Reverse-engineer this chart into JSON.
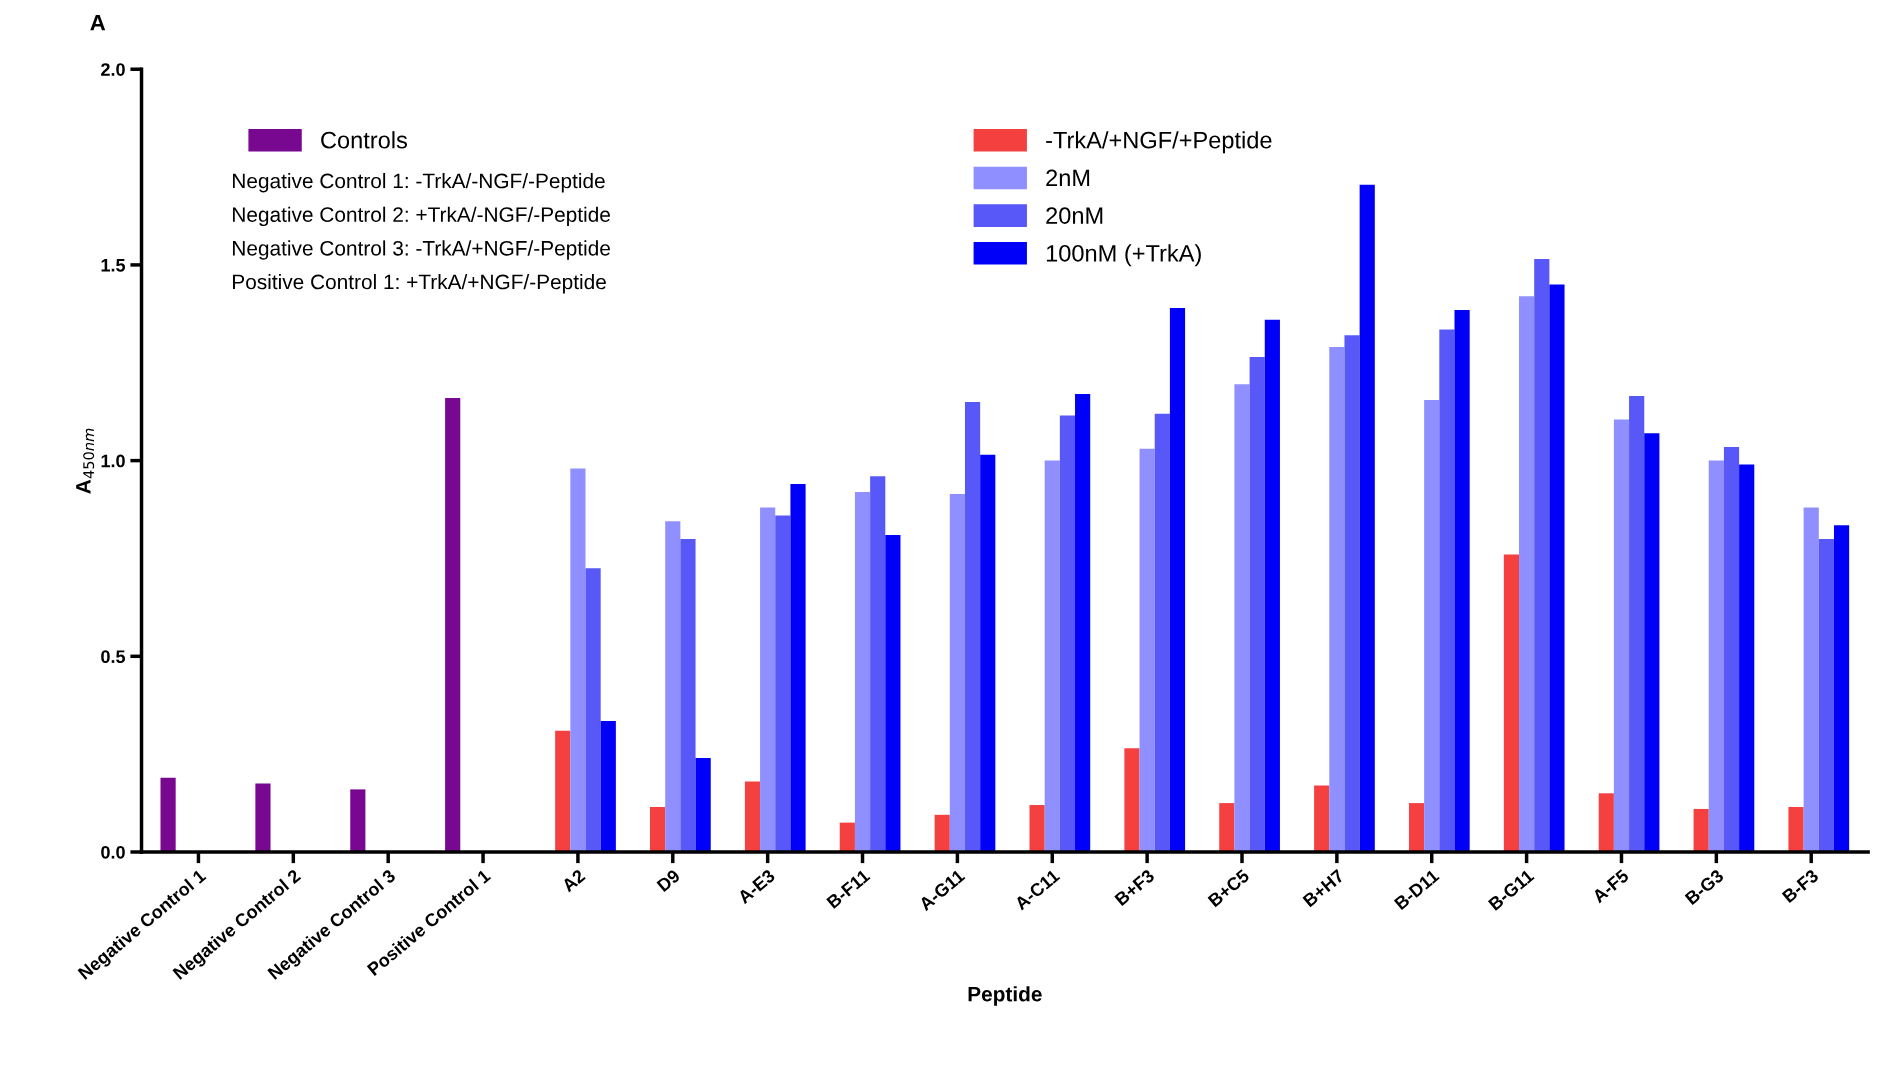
{
  "chart_data": {
    "type": "bar",
    "title": "A",
    "xlabel": "Peptide",
    "ylabel": "A$_{450nm}$",
    "categories": [
      "Negative Control 1",
      "Negative Control 2",
      "Negative Control 3",
      "Positive Control 1",
      "A2",
      "D9",
      "A-E3",
      "B-F11",
      "A-G11",
      "A-C11",
      "B+F3",
      "B+C5",
      "B+H7",
      "B-D11",
      "B-G11",
      "A-F5",
      "B-G3",
      "B-F3"
    ],
    "series": [
      {
        "name": "Controls",
        "color": "#780890",
        "values": [
          0.19,
          0.175,
          0.16,
          1.16,
          null,
          null,
          null,
          null,
          null,
          null,
          null,
          null,
          null,
          null,
          null,
          null,
          null,
          null
        ]
      },
      {
        "name": "-TrkA/+NGF/+Peptide",
        "color": "#f54040",
        "values": [
          null,
          null,
          null,
          null,
          0.31,
          0.115,
          0.18,
          0.075,
          0.095,
          0.12,
          0.265,
          0.125,
          0.17,
          0.125,
          0.76,
          0.15,
          0.11,
          0.115
        ]
      },
      {
        "name": "2nM",
        "color": "#8f8fff",
        "values": [
          null,
          null,
          null,
          null,
          0.98,
          0.845,
          0.88,
          0.92,
          0.915,
          1.0,
          1.03,
          1.195,
          1.29,
          1.155,
          1.42,
          1.105,
          1.0,
          0.88
        ]
      },
      {
        "name": "20nM",
        "color": "#5858f8",
        "values": [
          null,
          null,
          null,
          null,
          0.725,
          0.8,
          0.86,
          0.96,
          1.15,
          1.115,
          1.12,
          1.265,
          1.32,
          1.335,
          1.515,
          1.165,
          1.035,
          0.8
        ]
      },
      {
        "name": "100nM (+TrkA)",
        "color": "#0000f8",
        "values": [
          null,
          null,
          null,
          null,
          0.335,
          0.24,
          0.94,
          0.81,
          1.015,
          1.17,
          1.39,
          1.36,
          1.705,
          1.385,
          1.45,
          1.07,
          0.99,
          0.835
        ]
      }
    ],
    "ylim": [
      0,
      2
    ],
    "yticks": [
      {
        "value": 0,
        "label": "0.0"
      },
      {
        "value": 0.5,
        "label": "0.5"
      },
      {
        "value": 1,
        "label": "1.0"
      },
      {
        "value": 1.5,
        "label": "1.5"
      },
      {
        "value": 2,
        "label": "2.0"
      }
    ],
    "grid": false,
    "legend": "top",
    "annotations": [
      "Negative Control 1: -TrkA/-NGF/-Peptide",
      "Negative Control 2: +TrkA/-NGF/-Peptide",
      "Negative Control 3: -TrkA/+NGF/-Peptide",
      "Positive Control 1: +TrkA/+NGF/-Peptide"
    ]
  }
}
